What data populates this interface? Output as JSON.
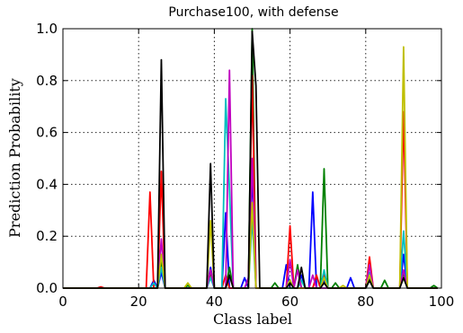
{
  "chart_data": {
    "type": "line",
    "title": "Purchase100, with defense",
    "xlabel": "Class label",
    "ylabel": "Prediction Probability",
    "xlim": [
      0,
      100
    ],
    "ylim": [
      0,
      1.0
    ],
    "xticks": [
      0,
      20,
      40,
      60,
      80,
      100
    ],
    "xtick_labels": [
      "0",
      "20",
      "40",
      "60",
      "80",
      "100"
    ],
    "yticks": [
      0,
      0.2,
      0.4,
      0.6,
      0.8,
      1.0
    ],
    "ytick_labels": [
      "0.0",
      "0.2",
      "0.4",
      "0.6",
      "0.8",
      "1.0"
    ],
    "grid": true,
    "series": [
      {
        "color": "#0000ff",
        "peaks": [
          [
            24,
            0.03
          ],
          [
            26,
            0.06
          ],
          [
            39,
            0.08
          ],
          [
            43,
            0.29
          ],
          [
            48,
            0.04
          ],
          [
            50,
            0.45
          ],
          [
            59,
            0.09
          ],
          [
            63,
            0.05
          ],
          [
            66,
            0.37
          ],
          [
            69,
            0.03
          ],
          [
            76,
            0.04
          ],
          [
            81,
            0.04
          ],
          [
            90,
            0.13
          ]
        ]
      },
      {
        "color": "#008000",
        "peaks": [
          [
            26,
            0.1
          ],
          [
            33,
            0.01
          ],
          [
            39,
            0.06
          ],
          [
            44,
            0.08
          ],
          [
            50,
            1.0
          ],
          [
            56,
            0.02
          ],
          [
            62,
            0.09
          ],
          [
            69,
            0.46
          ],
          [
            72,
            0.02
          ],
          [
            81,
            0.03
          ],
          [
            85,
            0.03
          ],
          [
            90,
            0.06
          ],
          [
            98,
            0.01
          ]
        ]
      },
      {
        "color": "#ff0000",
        "peaks": [
          [
            10,
            0.005
          ],
          [
            23,
            0.37
          ],
          [
            26,
            0.45
          ],
          [
            39,
            0.07
          ],
          [
            43,
            0.05
          ],
          [
            50,
            0.82
          ],
          [
            60,
            0.24
          ],
          [
            67,
            0.05
          ],
          [
            69,
            0.05
          ],
          [
            81,
            0.12
          ],
          [
            90,
            0.68
          ]
        ]
      },
      {
        "color": "#00bfbf",
        "peaks": [
          [
            24,
            0.02
          ],
          [
            26,
            0.08
          ],
          [
            39,
            0.04
          ],
          [
            43,
            0.73
          ],
          [
            44,
            0.38
          ],
          [
            50,
            0.27
          ],
          [
            60,
            0.03
          ],
          [
            63,
            0.03
          ],
          [
            69,
            0.07
          ],
          [
            81,
            0.06
          ],
          [
            90,
            0.22
          ]
        ]
      },
      {
        "color": "#bf00bf",
        "peaks": [
          [
            26,
            0.19
          ],
          [
            39,
            0.07
          ],
          [
            44,
            0.84
          ],
          [
            49,
            0.04
          ],
          [
            50,
            0.5
          ],
          [
            60,
            0.11
          ],
          [
            62,
            0.07
          ],
          [
            66,
            0.05
          ],
          [
            81,
            0.09
          ],
          [
            90,
            0.07
          ]
        ]
      },
      {
        "color": "#bfbf00",
        "peaks": [
          [
            26,
            0.13
          ],
          [
            33,
            0.02
          ],
          [
            39,
            0.26
          ],
          [
            44,
            0.05
          ],
          [
            50,
            0.33
          ],
          [
            60,
            0.03
          ],
          [
            69,
            0.04
          ],
          [
            74,
            0.01
          ],
          [
            81,
            0.05
          ],
          [
            90,
            0.93
          ]
        ]
      },
      {
        "color": "#000000",
        "peaks": [
          [
            26,
            0.88
          ],
          [
            39,
            0.48
          ],
          [
            44,
            0.05
          ],
          [
            50,
            0.99
          ],
          [
            51,
            0.78
          ],
          [
            60,
            0.02
          ],
          [
            63,
            0.08
          ],
          [
            69,
            0.02
          ],
          [
            81,
            0.03
          ],
          [
            90,
            0.04
          ]
        ]
      }
    ]
  }
}
